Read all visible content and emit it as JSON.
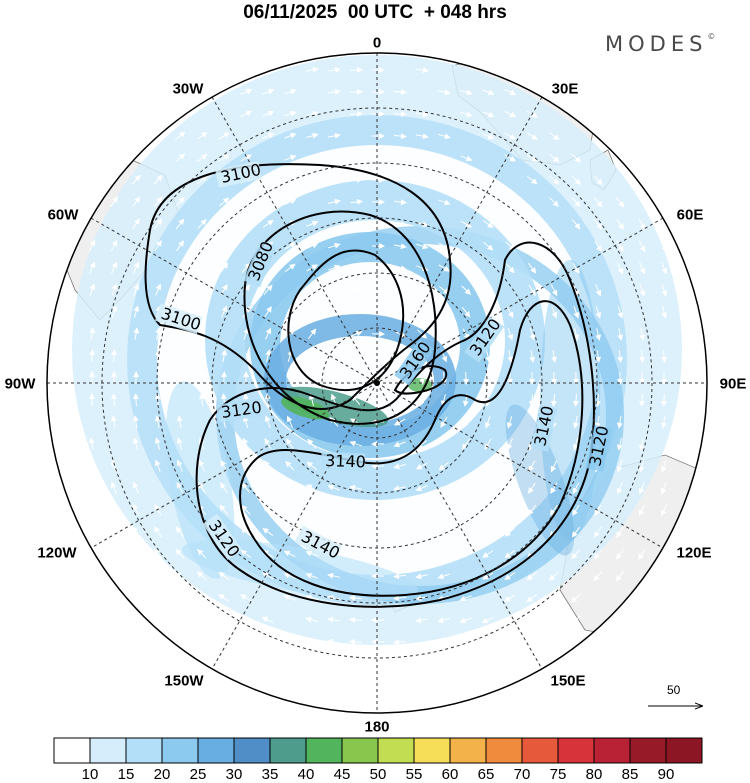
{
  "title": "06/11/2025  00 UTC  + 048 hrs",
  "brand": "MODES",
  "brand_mark": "©",
  "longitude_labels": {
    "lon_0": "0",
    "lon_30e": "30E",
    "lon_60e": "60E",
    "lon_90e": "90E",
    "lon_120e": "120E",
    "lon_150e": "150E",
    "lon_180": "180",
    "lon_150w": "150W",
    "lon_120w": "120W",
    "lon_90w": "90W",
    "lon_60w": "60W",
    "lon_30w": "30W"
  },
  "contour_labels": {
    "c3100_a": "3100",
    "c3080": "3080",
    "c3100_b": "3100",
    "c3120_a": "3120",
    "c3160": "3160",
    "c3120_b": "3120",
    "c3140_a": "3140",
    "c3140_b": "3140",
    "c3120_c": "3120",
    "c3140_c": "3140",
    "c3120_d": "3120"
  },
  "vector_scale": {
    "value": "50"
  },
  "colorbar": {
    "labels": [
      "10",
      "15",
      "20",
      "25",
      "30",
      "35",
      "40",
      "45",
      "50",
      "55",
      "60",
      "65",
      "70",
      "75",
      "80",
      "85",
      "90"
    ],
    "colors": [
      "#ffffff",
      "#d6eefc",
      "#b4dff8",
      "#8ccaf0",
      "#68aee2",
      "#4f8ec6",
      "#4e9d8c",
      "#52b45c",
      "#88c64e",
      "#c3dd52",
      "#f7de58",
      "#f4b24a",
      "#f08a3c",
      "#e6593a",
      "#d6343a",
      "#b82234",
      "#971a28",
      "#8c1624"
    ]
  }
}
